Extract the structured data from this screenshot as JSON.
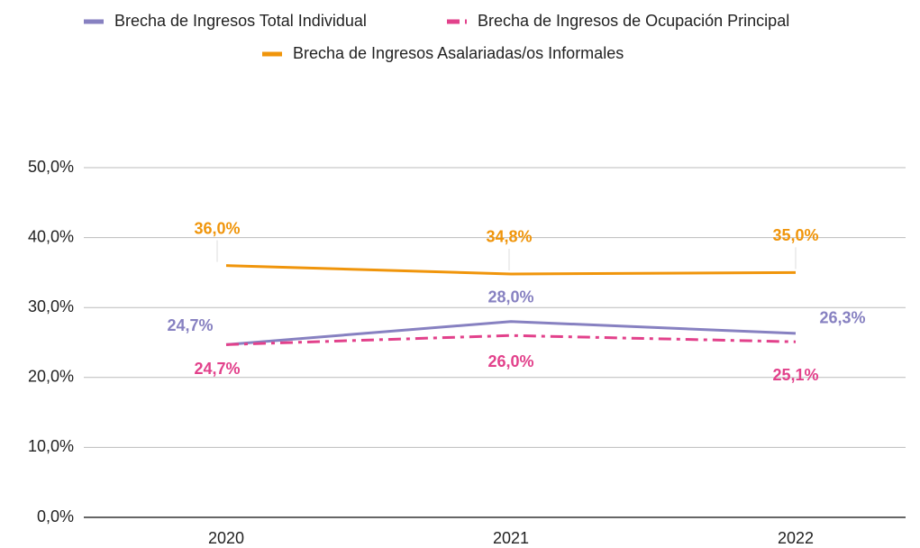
{
  "chart_data": {
    "type": "line",
    "categories": [
      "2020",
      "2021",
      "2022"
    ],
    "series": [
      {
        "name": "Brecha de Ingresos Total Individual",
        "color": "#8781c1",
        "dash": "solid",
        "values": [
          24.7,
          28.0,
          26.3
        ],
        "value_labels": [
          "24,7%",
          "28,0%",
          "26,3%"
        ]
      },
      {
        "name": "Brecha de Ingresos de Ocupación Principal",
        "color": "#e2418b",
        "dash": "dashdot",
        "values": [
          24.7,
          26.0,
          25.1
        ],
        "value_labels": [
          "24,7%",
          "26,0%",
          "25,1%"
        ]
      },
      {
        "name": "Brecha de Ingresos Asalariadas/os Informales",
        "color": "#f0950b",
        "dash": "solid",
        "values": [
          36.0,
          34.8,
          35.0
        ],
        "value_labels": [
          "36,0%",
          "34,8%",
          "35,0%"
        ]
      }
    ],
    "ylim": [
      0,
      50
    ],
    "yticks": [
      {
        "value": 0,
        "label": "0,0%"
      },
      {
        "value": 10,
        "label": "10,0%"
      },
      {
        "value": 20,
        "label": "20,0%"
      },
      {
        "value": 30,
        "label": "30,0%"
      },
      {
        "value": 40,
        "label": "40,0%"
      },
      {
        "value": 50,
        "label": "50,0%"
      }
    ],
    "grid": true,
    "legend": "top"
  }
}
